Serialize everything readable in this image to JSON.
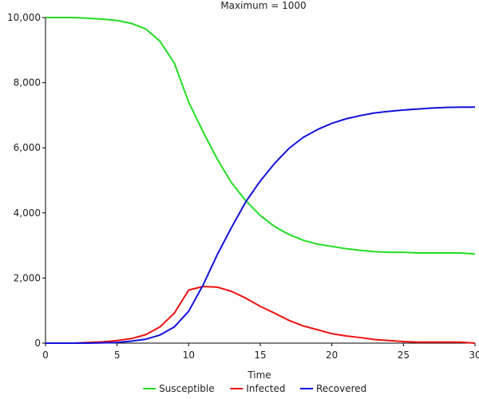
{
  "chart_data": {
    "type": "line",
    "title": "Maximum = 1000",
    "xlabel": "Time",
    "ylabel": "",
    "xlim": [
      0,
      30
    ],
    "ylim": [
      0,
      10000
    ],
    "x_ticks": [
      0,
      5,
      10,
      15,
      20,
      25,
      30
    ],
    "x_tick_labels": [
      "0",
      "5",
      "10",
      "15",
      "20",
      "25",
      "30"
    ],
    "y_ticks": [
      0,
      2000,
      4000,
      6000,
      8000,
      10000
    ],
    "y_tick_labels": [
      "0",
      "2,000",
      "4,000",
      "6,000",
      "8,000",
      "10,000"
    ],
    "grid": false,
    "legend_position": "bottom-center",
    "x": [
      0,
      1,
      2,
      3,
      4,
      5,
      6,
      7,
      8,
      9,
      10,
      11,
      12,
      13,
      14,
      15,
      16,
      17,
      18,
      19,
      20,
      21,
      22,
      23,
      24,
      25,
      26,
      27,
      28,
      29,
      30
    ],
    "series": [
      {
        "name": "Susceptible",
        "color": "#22dd22",
        "values": [
          10000,
          10000,
          10000,
          9980,
          9950,
          9910,
          9820,
          9650,
          9270,
          8600,
          7400,
          6500,
          5650,
          4920,
          4370,
          3920,
          3580,
          3340,
          3160,
          3040,
          2970,
          2900,
          2850,
          2810,
          2790,
          2790,
          2770,
          2770,
          2770,
          2770,
          2740
        ]
      },
      {
        "name": "Infected",
        "color": "#ee1111",
        "values": [
          0,
          0,
          0,
          20,
          40,
          80,
          140,
          260,
          500,
          920,
          1630,
          1740,
          1720,
          1590,
          1380,
          1130,
          920,
          700,
          530,
          410,
          290,
          220,
          170,
          110,
          80,
          50,
          30,
          30,
          30,
          30,
          0
        ]
      },
      {
        "name": "Recovered",
        "color": "#1111dd",
        "values": [
          0,
          0,
          0,
          0,
          10,
          20,
          60,
          120,
          250,
          500,
          980,
          1780,
          2720,
          3560,
          4350,
          4980,
          5520,
          5980,
          6320,
          6560,
          6750,
          6890,
          6990,
          7070,
          7120,
          7160,
          7190,
          7220,
          7240,
          7250,
          7250
        ]
      }
    ]
  }
}
